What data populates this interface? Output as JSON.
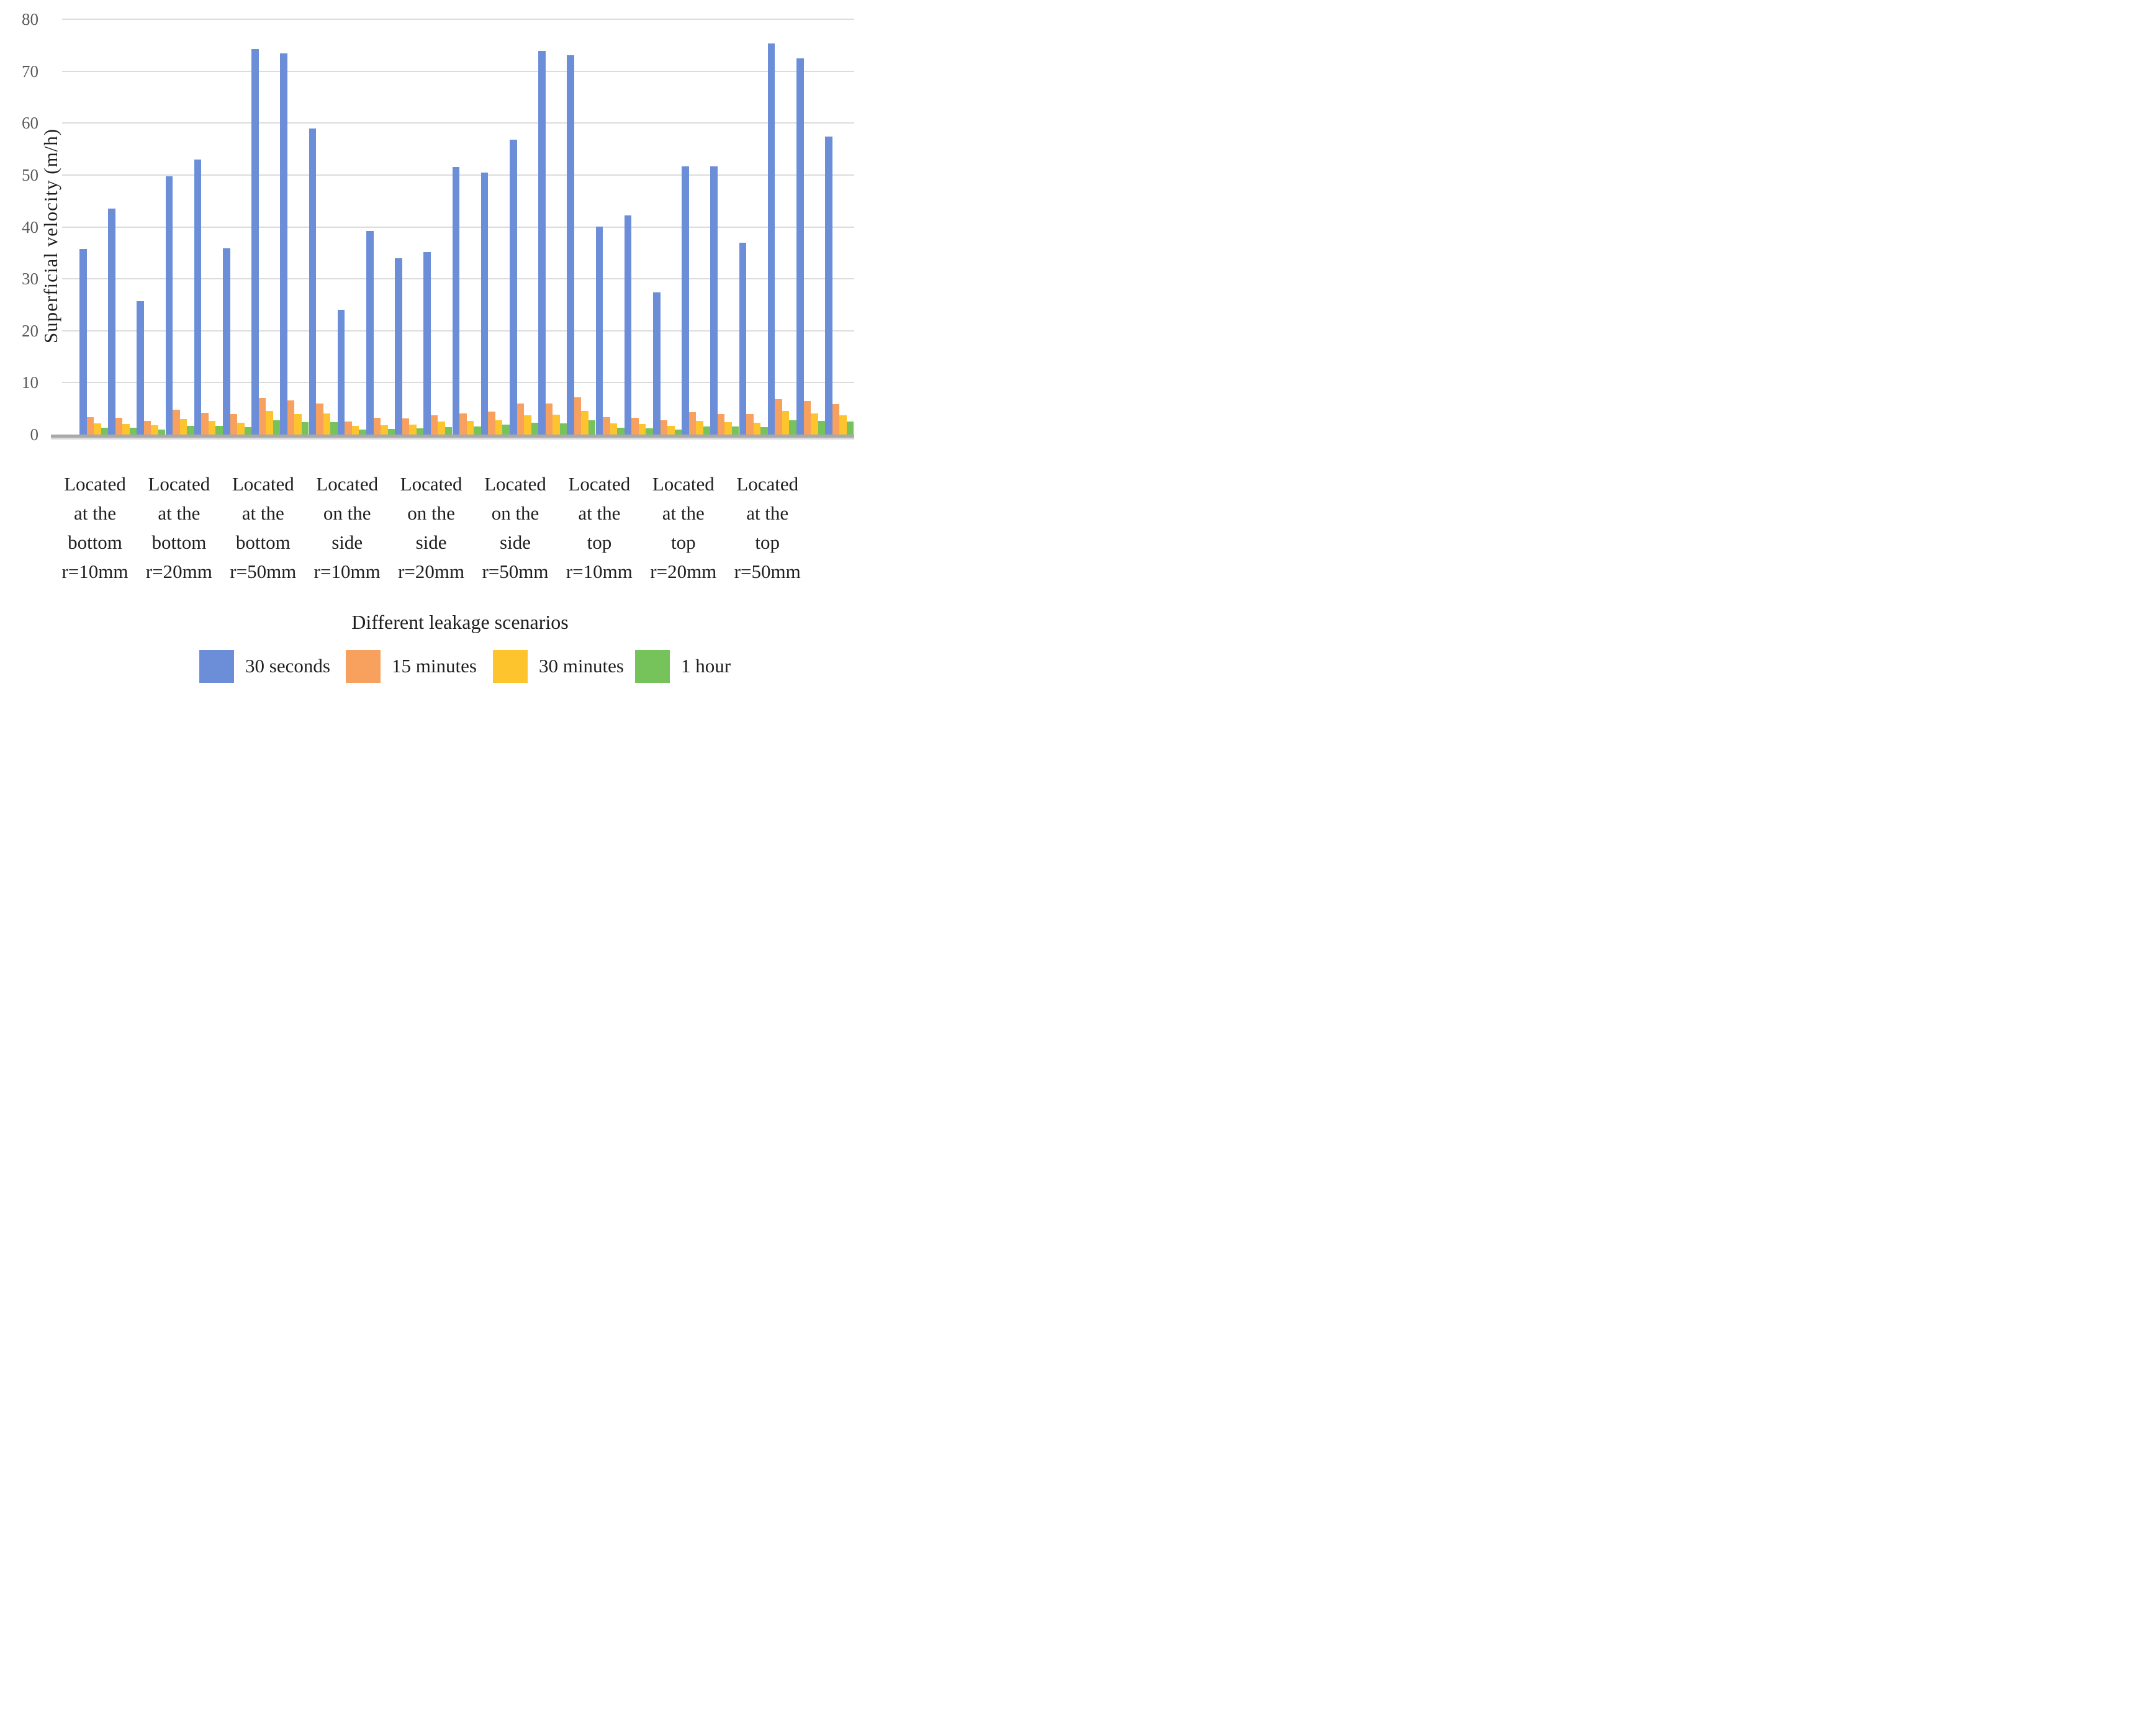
{
  "chart_data": {
    "type": "bar",
    "title": "",
    "xlabel": "Different leakage scenarios",
    "ylabel": "Superficial velocity (m/h)",
    "ylim": [
      0,
      80
    ],
    "yticks": [
      0,
      10,
      20,
      30,
      40,
      50,
      60,
      70,
      80
    ],
    "grid": "horizontal",
    "legend_position": "bottom",
    "groups_per_category": 3,
    "categories": [
      {
        "label": "Located at the bottom r=10mm",
        "lines": [
          "Located",
          "at the",
          "bottom",
          "r=10mm"
        ]
      },
      {
        "label": "Located at the bottom r=20mm",
        "lines": [
          "Located",
          "at the",
          "bottom",
          "r=20mm"
        ]
      },
      {
        "label": "Located at the bottom r=50mm",
        "lines": [
          "Located",
          "at the",
          "bottom",
          "r=50mm"
        ]
      },
      {
        "label": "Located on the side r=10mm",
        "lines": [
          "Located",
          "on the",
          "side",
          "r=10mm"
        ]
      },
      {
        "label": "Located on the side r=20mm",
        "lines": [
          "Located",
          "on the",
          "side",
          "r=20mm"
        ]
      },
      {
        "label": "Located on the side r=50mm",
        "lines": [
          "Located",
          "on the",
          "side",
          "r=50mm"
        ]
      },
      {
        "label": "Located at the top r=10mm",
        "lines": [
          "Located",
          "at the",
          "top",
          "r=10mm"
        ]
      },
      {
        "label": "Located at the top r=20mm",
        "lines": [
          "Located",
          "at the",
          "top",
          "r=20mm"
        ]
      },
      {
        "label": "Located at the top r=50mm",
        "lines": [
          "Located",
          "at the",
          "top",
          "r=50mm"
        ]
      }
    ],
    "series": [
      {
        "name": "30 seconds",
        "color": "#6c8ed9",
        "values": [
          35.7,
          43.5,
          25.7,
          49.8,
          53.0,
          35.9,
          74.3,
          73.4,
          58.9,
          24.0,
          39.2,
          34.0,
          35.2,
          51.6,
          50.5,
          56.8,
          73.9,
          73.1,
          40.1,
          42.2,
          27.4,
          51.7,
          51.7,
          37.0,
          75.3,
          72.5,
          57.4
        ]
      },
      {
        "name": "15 minutes",
        "color": "#f8a05d",
        "values": [
          3.3,
          3.2,
          2.6,
          4.8,
          4.2,
          3.9,
          7.0,
          6.6,
          6.0,
          2.5,
          3.2,
          3.1,
          3.7,
          4.1,
          4.4,
          6.0,
          6.0,
          7.2,
          3.4,
          3.2,
          2.8,
          4.3,
          4.0,
          3.9,
          6.8,
          6.4,
          5.9
        ]
      },
      {
        "name": "30 minutes",
        "color": "#fec42e",
        "values": [
          2.1,
          2.0,
          1.8,
          3.0,
          2.6,
          2.3,
          4.5,
          3.9,
          4.1,
          1.7,
          1.8,
          1.9,
          2.5,
          2.6,
          2.8,
          3.7,
          3.8,
          4.5,
          2.1,
          2.0,
          1.7,
          2.6,
          2.4,
          2.3,
          4.5,
          4.1,
          3.7
        ]
      },
      {
        "name": "1 hour",
        "color": "#76c35c",
        "values": [
          1.3,
          1.3,
          1.0,
          1.7,
          1.7,
          1.4,
          2.8,
          2.4,
          2.4,
          1.0,
          1.1,
          1.2,
          1.4,
          1.5,
          1.9,
          2.3,
          2.2,
          2.7,
          1.3,
          1.2,
          1.0,
          1.5,
          1.5,
          1.4,
          2.8,
          2.6,
          2.5
        ]
      }
    ],
    "style_colors": {
      "gridline": "#dcdcdc",
      "axis_line": "#a9a9a9",
      "tick_text": "#595959",
      "label_text": "#1f1f1f"
    }
  }
}
